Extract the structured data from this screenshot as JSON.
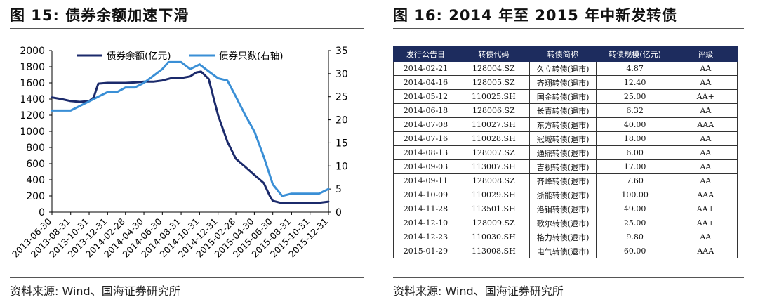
{
  "left_panel": {
    "title": "图 15:  债券余额加速下滑",
    "source": "资料来源:  Wind、国海证券研究所"
  },
  "right_panel": {
    "title": "图 16:  2014 年至 2015 年中新发转债",
    "source": "资料来源:  Wind、国海证券研究所",
    "table": {
      "headers": [
        "发行公告日",
        "转债代码",
        "转债简称",
        "转债规模(亿元)",
        "评级"
      ],
      "rows": [
        [
          "2014-02-21",
          "128004.SZ",
          "久立转债(退市)",
          "4.87",
          "AA"
        ],
        [
          "2014-04-16",
          "128005.SZ",
          "齐翔转债(退市)",
          "12.40",
          "AA"
        ],
        [
          "2014-05-12",
          "110025.SH",
          "国金转债(退市)",
          "25.00",
          "AA+"
        ],
        [
          "2014-06-18",
          "128006.SZ",
          "长青转债(退市)",
          "6.32",
          "AA"
        ],
        [
          "2014-07-08",
          "110027.SH",
          "东方转债(退市)",
          "40.00",
          "AAA"
        ],
        [
          "2014-07-16",
          "110028.SH",
          "冠城转债(退市)",
          "18.00",
          "AA"
        ],
        [
          "2014-08-13",
          "128007.SZ",
          "通鼎转债(退市)",
          "6.00",
          "AA"
        ],
        [
          "2014-09-03",
          "113007.SH",
          "吉视转债(退市)",
          "17.00",
          "AA"
        ],
        [
          "2014-09-11",
          "128008.SZ",
          "齐峰转债(退市)",
          "7.60",
          "AA"
        ],
        [
          "2014-10-09",
          "110029.SH",
          "浙能转债(退市)",
          "100.00",
          "AAA"
        ],
        [
          "2014-11-28",
          "113501.SH",
          "洛钼转债(退市)",
          "49.00",
          "AA+"
        ],
        [
          "2014-12-10",
          "128009.SZ",
          "歌尔转债(退市)",
          "25.00",
          "AA+"
        ],
        [
          "2014-12-23",
          "110030.SH",
          "格力转债(退市)",
          "9.80",
          "AA"
        ],
        [
          "2015-01-29",
          "113008.SH",
          "电气转债(退市)",
          "60.00",
          "AAA"
        ]
      ]
    }
  },
  "colors": {
    "balance": "#1b2a6b",
    "count": "#3a8fd6",
    "header_bg": "#1d2c5e"
  },
  "chart_data": {
    "type": "line",
    "x": [
      "2013-06-30",
      "2013-08-31",
      "2013-10-31",
      "2013-12-31",
      "2014-02-28",
      "2014-04-30",
      "2014-06-30",
      "2014-08-31",
      "2014-10-31",
      "2014-12-31",
      "2015-02-28",
      "2015-04-30",
      "2015-06-30",
      "2015-08-31",
      "2015-10-31",
      "2015-12-31"
    ],
    "x_range": [
      "2013-06-30",
      "2015-12-31"
    ],
    "series": [
      {
        "name": "债券余额(亿元)",
        "axis": "left",
        "points": [
          [
            "2013-06-30",
            1420
          ],
          [
            "2013-07-31",
            1400
          ],
          [
            "2013-08-31",
            1375
          ],
          [
            "2013-09-30",
            1365
          ],
          [
            "2013-10-31",
            1375
          ],
          [
            "2013-11-15",
            1420
          ],
          [
            "2013-11-30",
            1590
          ],
          [
            "2013-12-31",
            1600
          ],
          [
            "2014-01-31",
            1600
          ],
          [
            "2014-02-28",
            1600
          ],
          [
            "2014-03-31",
            1605
          ],
          [
            "2014-04-30",
            1615
          ],
          [
            "2014-05-31",
            1615
          ],
          [
            "2014-06-30",
            1630
          ],
          [
            "2014-07-31",
            1660
          ],
          [
            "2014-08-31",
            1660
          ],
          [
            "2014-09-30",
            1680
          ],
          [
            "2014-10-20",
            1730
          ],
          [
            "2014-11-05",
            1740
          ],
          [
            "2014-11-30",
            1650
          ],
          [
            "2014-12-31",
            1200
          ],
          [
            "2015-01-31",
            870
          ],
          [
            "2015-02-28",
            660
          ],
          [
            "2015-03-31",
            560
          ],
          [
            "2015-04-30",
            460
          ],
          [
            "2015-05-31",
            360
          ],
          [
            "2015-06-20",
            200
          ],
          [
            "2015-06-30",
            140
          ],
          [
            "2015-07-31",
            110
          ],
          [
            "2015-08-31",
            110
          ],
          [
            "2015-09-30",
            110
          ],
          [
            "2015-10-31",
            110
          ],
          [
            "2015-11-30",
            115
          ],
          [
            "2015-12-31",
            130
          ]
        ]
      },
      {
        "name": "债券只数(右轴)",
        "axis": "right",
        "points": [
          [
            "2013-06-30",
            22.0
          ],
          [
            "2013-07-31",
            22.0
          ],
          [
            "2013-08-31",
            22.0
          ],
          [
            "2013-09-30",
            23.0
          ],
          [
            "2013-10-31",
            24.0
          ],
          [
            "2013-11-30",
            25.0
          ],
          [
            "2013-12-31",
            26.0
          ],
          [
            "2014-01-31",
            26.0
          ],
          [
            "2014-02-28",
            27.0
          ],
          [
            "2014-03-31",
            27.0
          ],
          [
            "2014-04-30",
            28.0
          ],
          [
            "2014-05-31",
            29.5
          ],
          [
            "2014-06-30",
            31.0
          ],
          [
            "2014-07-20",
            32.5
          ],
          [
            "2014-08-31",
            32.5
          ],
          [
            "2014-09-30",
            31.0
          ],
          [
            "2014-10-31",
            32.0
          ],
          [
            "2014-11-30",
            30.5
          ],
          [
            "2014-12-31",
            29.0
          ],
          [
            "2015-01-31",
            28.5
          ],
          [
            "2015-02-28",
            25.0
          ],
          [
            "2015-03-31",
            21.0
          ],
          [
            "2015-04-30",
            17.5
          ],
          [
            "2015-05-31",
            12.0
          ],
          [
            "2015-06-30",
            6.0
          ],
          [
            "2015-07-31",
            3.5
          ],
          [
            "2015-08-31",
            4.0
          ],
          [
            "2015-09-30",
            4.0
          ],
          [
            "2015-10-31",
            4.0
          ],
          [
            "2015-11-30",
            4.0
          ],
          [
            "2015-12-31",
            5.0
          ]
        ]
      }
    ],
    "y_left": {
      "min": 0,
      "max": 2000,
      "ticks": [
        0,
        200,
        400,
        600,
        800,
        1000,
        1200,
        1400,
        1600,
        1800,
        2000
      ]
    },
    "y_right": {
      "min": 0,
      "max": 35,
      "ticks": [
        0,
        5,
        10,
        15,
        20,
        25,
        30,
        35
      ]
    },
    "grid": false,
    "legend_position": "top"
  }
}
